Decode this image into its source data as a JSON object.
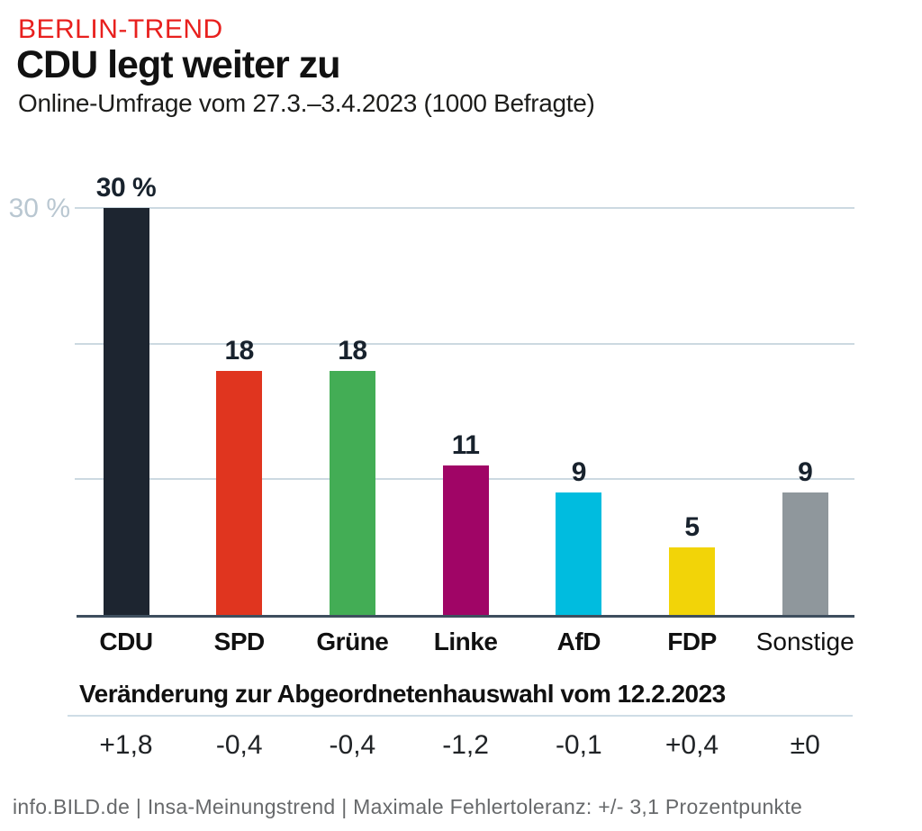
{
  "header": {
    "kicker": "BERLIN-TREND",
    "title": "CDU legt weiter zu",
    "subtitle": "Online-Umfrage vom 27.3.–3.4.2023 (1000 Befragte)"
  },
  "chart_data": {
    "type": "bar",
    "categories": [
      "CDU",
      "SPD",
      "Grüne",
      "Linke",
      "AfD",
      "FDP",
      "Sonstige"
    ],
    "values": [
      30,
      18,
      18,
      11,
      9,
      5,
      9
    ],
    "value_labels": [
      "30 %",
      "18",
      "18",
      "11",
      "9",
      "5",
      "9"
    ],
    "bar_colors": [
      "#1d2530",
      "#e0351f",
      "#43ad55",
      "#a00566",
      "#00bcdf",
      "#f2d408",
      "#8f979c"
    ],
    "regular_weight_categories": [
      "Sonstige"
    ],
    "ylabel": "",
    "xlabel": "",
    "ytick_label": "30 %",
    "ylim": [
      0,
      33
    ],
    "gridlines_percent": [
      10,
      20,
      30
    ],
    "grid": "on",
    "legend": "none",
    "changes_title": "Veränderung zur Abgeordnetenhauswahl vom 12.2.2023",
    "changes": [
      "+1,8",
      "-0,4",
      "-0,4",
      "-1,2",
      "-0,1",
      "+0,4",
      "±0"
    ]
  },
  "footer": {
    "source": "info.BILD.de | Insa-Meinungstrend | Maximale Fehlertoleranz: +/- 3,1 Prozentpunkte"
  },
  "colors": {
    "kicker_red": "#e8201e",
    "headline": "#111111",
    "gridline": "#ccd9e1",
    "baseline": "#3e4e5e",
    "axis_tick_label": "#b9c7d1",
    "bar_value_label": "#18222d",
    "footer_text": "#67696b"
  }
}
